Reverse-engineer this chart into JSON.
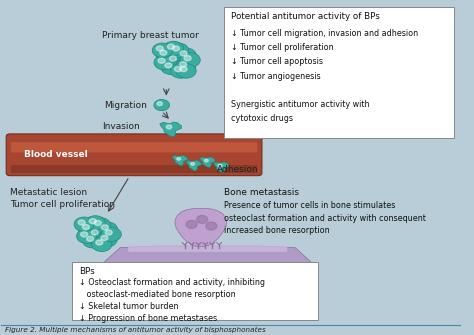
{
  "bg_color": "#cfe0ea",
  "fig_bg": "#b8cdd8",
  "title": "Figure 2. Multiple mechanisms of antitumor activity of bisphosphonates",
  "box1_title": "Potential antitumor activity of BPs",
  "box1_lines": [
    "↓ Tumor cell migration, invasion and adhesion",
    "↓ Tumor cell proliferation",
    "↓ Tumor cell apoptosis",
    "↓ Tumor angiogenesis",
    "",
    "Synergistic antitumor activity with",
    "cytotoxic drugs"
  ],
  "box2_title": "Bone metastasis",
  "box2_lines": [
    "Presence of tumor cells in bone stimulates",
    "osteoclast formation and activity with consequent",
    "increased bone resorption"
  ],
  "box3_title": "BPs",
  "box3_lines": [
    "↓ Osteoclast formation and activity, inhibiting",
    "   osteoclast-mediated bone resorption",
    "↓ Skeletal tumor burden",
    "↓ Progression of bone metastases"
  ],
  "label_primary": "Primary breast tumor",
  "label_migration": "Migration",
  "label_invasion": "Invasion",
  "label_blood": "Blood vessel",
  "label_adhesion": "Adhesion",
  "label_metastatic": "Metastatic lesion\nTumor cell proliferation",
  "blood_vessel_color": "#a84530",
  "blood_vessel_highlight": "#c86040",
  "tumor_color": "#3aada0",
  "tumor_dark": "#1d8a80",
  "osteoclast_color": "#c0a0d0",
  "osteoclast_dark": "#907098",
  "bone_color": "#b09ac8",
  "bone_light": "#ccc0e0"
}
